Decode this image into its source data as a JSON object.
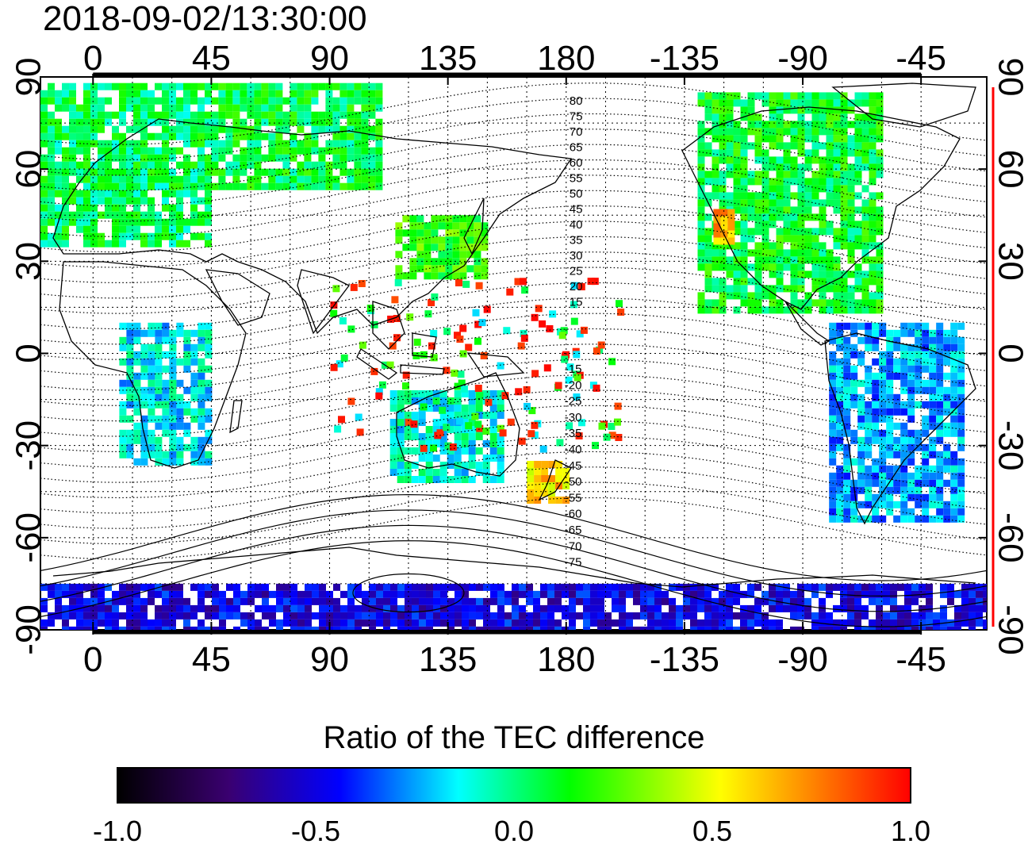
{
  "title": "2018-09-02/13:30:00",
  "top_axis_labels": [
    "0",
    "45",
    "90",
    "135",
    "180",
    "-135",
    "-90",
    "-45"
  ],
  "bottom_axis_labels": [
    "0",
    "45",
    "90",
    "135",
    "180",
    "-135",
    "-90",
    "-45"
  ],
  "left_axis_labels": [
    "90",
    "60",
    "30",
    "0",
    "-30",
    "-60",
    "-90"
  ],
  "right_axis_labels": [
    "90",
    "60",
    "30",
    "0",
    "-30",
    "-60",
    "-90"
  ],
  "contour_labels_north": [
    "80",
    "75",
    "70",
    "65",
    "60",
    "55",
    "50",
    "45",
    "40",
    "35",
    "30",
    "25",
    "20",
    "15"
  ],
  "contour_labels_south": [
    "-15",
    "-20",
    "-25",
    "-30",
    "-35",
    "-40",
    "-45",
    "-50",
    "-55",
    "-60",
    "-65",
    "-70",
    "-75"
  ],
  "colorbar": {
    "title": "Ratio of the TEC difference",
    "tick_labels": [
      "-1.0",
      "-0.5",
      "0.0",
      "0.5",
      "1.0"
    ],
    "range": [
      -1.0,
      1.0
    ],
    "colors": [
      "#000000",
      "#3a0070",
      "#0000ff",
      "#00ffff",
      "#00ff00",
      "#ffff00",
      "#ff8000",
      "#ff0000"
    ]
  },
  "map_data": {
    "x_range_deg": [
      -20,
      340
    ],
    "y_range_deg": [
      -90,
      90
    ],
    "grid": true,
    "regions": [
      {
        "name": "Europe",
        "lon": [
          -20,
          45
        ],
        "lat": [
          35,
          88
        ],
        "value": 0.05
      },
      {
        "name": "Siberia",
        "lon": [
          45,
          110
        ],
        "lat": [
          55,
          88
        ],
        "value": 0.08
      },
      {
        "name": "Africa",
        "lon": [
          10,
          45
        ],
        "lat": [
          -35,
          10
        ],
        "value": -0.15
      },
      {
        "name": "East Asia",
        "lon": [
          115,
          150
        ],
        "lat": [
          25,
          45
        ],
        "value": 0.2
      },
      {
        "name": "Australia",
        "lon": [
          113,
          155
        ],
        "lat": [
          -40,
          -12
        ],
        "value": -0.1
      },
      {
        "name": "New Zealand",
        "lon": [
          165,
          180
        ],
        "lat": [
          -48,
          -35
        ],
        "value": 0.6
      },
      {
        "name": "North America",
        "lon": [
          230,
          300
        ],
        "lat": [
          15,
          85
        ],
        "value": 0.1
      },
      {
        "name": "US West coast",
        "lon": [
          236,
          242
        ],
        "lat": [
          37,
          47
        ],
        "value": 0.7
      },
      {
        "name": "South America",
        "lon": [
          280,
          330
        ],
        "lat": [
          -55,
          10
        ],
        "value": -0.25
      },
      {
        "name": "Antarctica",
        "lon": [
          -20,
          340
        ],
        "lat": [
          -90,
          -75
        ],
        "value": -0.5
      }
    ]
  }
}
